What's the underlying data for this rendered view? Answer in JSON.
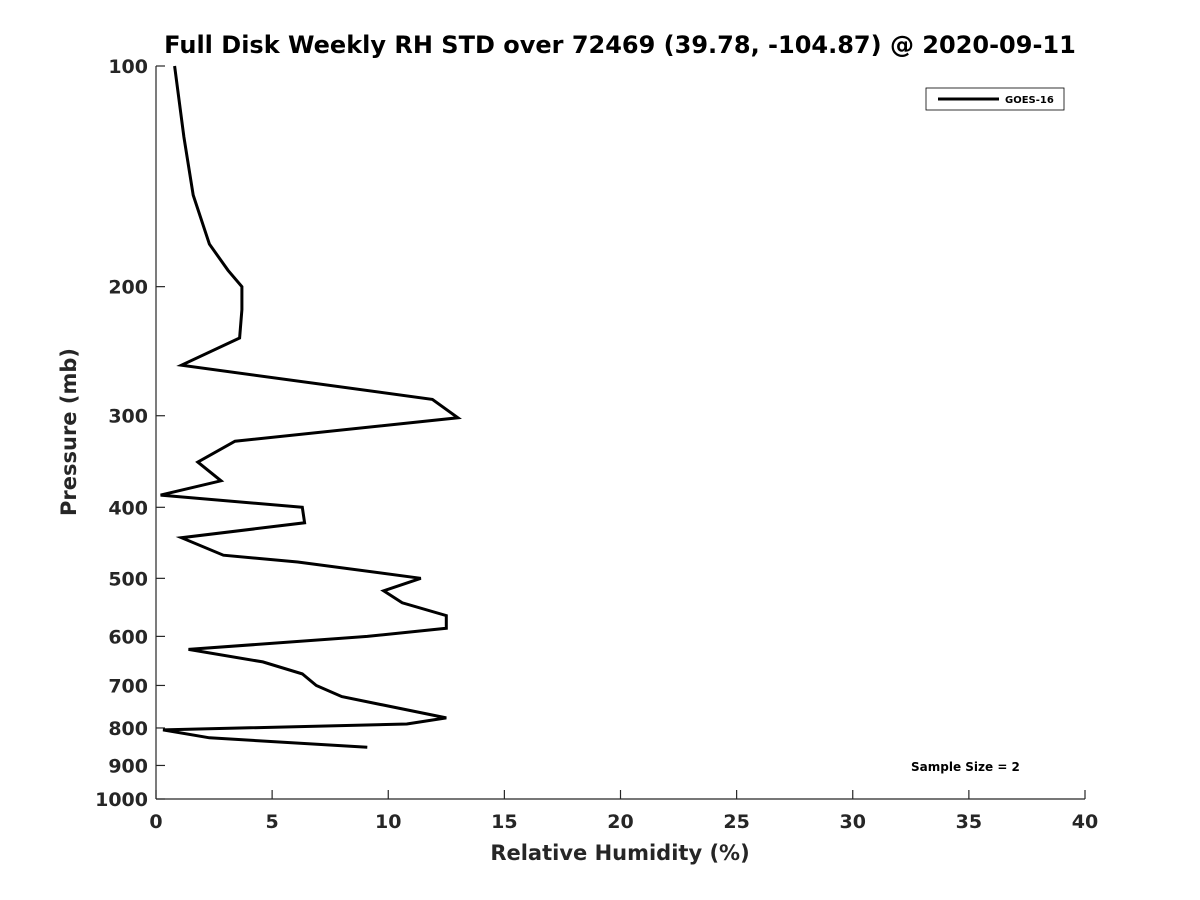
{
  "chart_data": {
    "type": "line",
    "title": "Full Disk Weekly RH STD over 72469 (39.78, -104.87) @ 2020-09-11",
    "xlabel": "Relative Humidity (%)",
    "ylabel": "Pressure (mb)",
    "xlim": [
      0,
      40
    ],
    "ylim": [
      100,
      1000
    ],
    "y_scale": "log",
    "y_reversed": true,
    "grid": false,
    "legend_position": "top-right",
    "x_ticks": [
      0,
      5,
      10,
      15,
      20,
      25,
      30,
      35,
      40
    ],
    "x_tick_labels": [
      "0",
      "5",
      "10",
      "15",
      "20",
      "25",
      "30",
      "35",
      "40"
    ],
    "y_ticks": [
      100,
      200,
      300,
      400,
      500,
      600,
      700,
      800,
      900,
      1000
    ],
    "y_tick_labels": [
      "100",
      "200",
      "300",
      "400",
      "500",
      "600",
      "700",
      "800",
      "900",
      "1000"
    ],
    "series": [
      {
        "name": "GOES-16",
        "color": "#000000",
        "x": [
          0.8,
          1.2,
          1.6,
          2.3,
          3.1,
          3.7,
          3.7,
          3.6,
          1.1,
          11.9,
          13.0,
          3.4,
          1.8,
          2.8,
          0.2,
          6.3,
          6.4,
          1.1,
          2.9,
          6.1,
          11.4,
          9.8,
          10.6,
          12.5,
          12.5,
          9.1,
          1.4,
          4.6,
          6.3,
          6.9,
          8.0,
          12.5,
          10.8,
          0.3,
          2.3,
          9.1
        ],
        "y": [
          100,
          125,
          150,
          175,
          190,
          200,
          215,
          235,
          256,
          285,
          302,
          325,
          347,
          368,
          385,
          400,
          420,
          440,
          465,
          475,
          500,
          520,
          540,
          562,
          585,
          600,
          625,
          650,
          675,
          700,
          725,
          775,
          790,
          805,
          825,
          850
        ]
      }
    ],
    "annotations": [
      "Sample Size = 2"
    ]
  }
}
